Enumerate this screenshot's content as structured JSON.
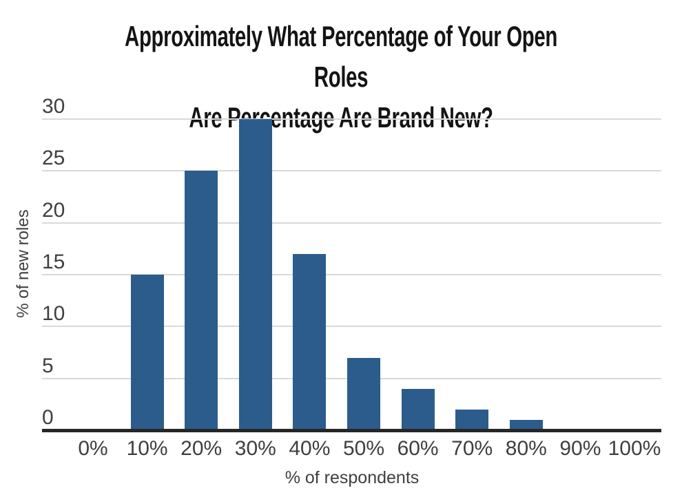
{
  "chart_data": {
    "type": "bar",
    "title_lines": [
      "Approximately What Percentage of Your Open Roles",
      "Are Percentage Are Brand New?"
    ],
    "categories": [
      "0%",
      "10%",
      "20%",
      "30%",
      "40%",
      "50%",
      "60%",
      "70%",
      "80%",
      "90%",
      "100%"
    ],
    "values": [
      0,
      15,
      25,
      30,
      17,
      7,
      4,
      2,
      1,
      0,
      0
    ],
    "xlabel": "% of respondents",
    "ylabel": "% of new roles",
    "ylim": [
      0,
      30
    ],
    "yticks": [
      0,
      5,
      10,
      15,
      20,
      25,
      30
    ],
    "grid": true,
    "legend": "none",
    "colors": {
      "bar": "#2b5c8c",
      "gridline": "#d9d9d9",
      "axis_line": "#262626",
      "tick_label": "#3f3f3f",
      "title": "#141414",
      "background": "#ffffff"
    }
  }
}
